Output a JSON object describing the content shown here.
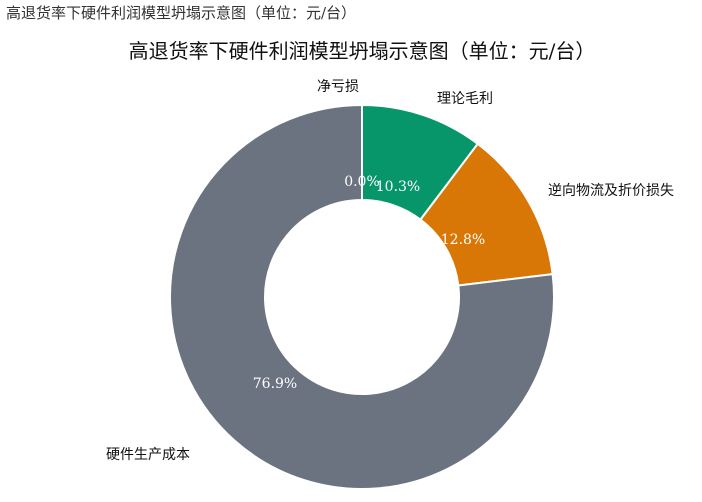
{
  "caption": "高退货率下硬件利润模型坍塌示意图（单位：元/台）",
  "chart_data": {
    "type": "donut",
    "title": "高退货率下硬件利润模型坍塌示意图（单位：元/台）",
    "slices": [
      {
        "label": "净亏损",
        "value": 0.0,
        "pct_label": "0.0%",
        "color": "#d9534f"
      },
      {
        "label": "理论毛利",
        "value": 10.3,
        "pct_label": "10.3%",
        "color": "#079669"
      },
      {
        "label": "逆向物流及折价损失",
        "value": 12.8,
        "pct_label": "12.8%",
        "color": "#d97706"
      },
      {
        "label": "硬件生产成本",
        "value": 76.9,
        "pct_label": "76.9%",
        "color": "#6b7280"
      }
    ],
    "start": "top",
    "direction": "clockwise",
    "legend": "none"
  }
}
